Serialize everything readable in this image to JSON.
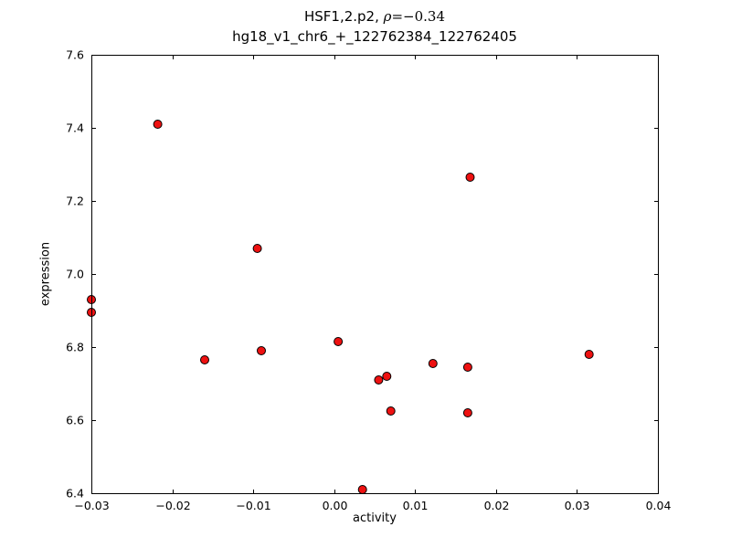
{
  "chart_data": {
    "type": "scatter",
    "title": {
      "prefix": "HSF1,2.p2, ",
      "rho": "ρ",
      "rho_value": "=−0.34",
      "line2": "hg18_v1_chr6_+_122762384_122762405"
    },
    "xlabel": "activity",
    "ylabel": "expression",
    "xlim": [
      -0.03,
      0.04
    ],
    "ylim": [
      6.4,
      7.6
    ],
    "grid": false,
    "legend": "none",
    "xtick_values": [
      -0.03,
      -0.02,
      -0.01,
      0.0,
      0.01,
      0.02,
      0.03,
      0.04
    ],
    "xtick_labels": [
      "−0.03",
      "−0.02",
      "−0.01",
      "0.00",
      "0.01",
      "0.02",
      "0.03",
      "0.04"
    ],
    "ytick_values": [
      6.4,
      6.6,
      6.8,
      7.0,
      7.2,
      7.4,
      7.6
    ],
    "ytick_labels": [
      "6.4",
      "6.6",
      "6.8",
      "7.0",
      "7.2",
      "7.4",
      "7.6"
    ],
    "marker": {
      "color": "#ee1111",
      "edge": "#000000",
      "radius": 4.5
    },
    "points": [
      {
        "x": -0.03,
        "y": 6.93
      },
      {
        "x": -0.03,
        "y": 6.895
      },
      {
        "x": -0.0218,
        "y": 7.41
      },
      {
        "x": -0.016,
        "y": 6.765
      },
      {
        "x": -0.0095,
        "y": 7.07
      },
      {
        "x": -0.009,
        "y": 6.79
      },
      {
        "x": 0.0005,
        "y": 6.815
      },
      {
        "x": 0.0035,
        "y": 6.41
      },
      {
        "x": 0.0055,
        "y": 6.71
      },
      {
        "x": 0.0065,
        "y": 6.72
      },
      {
        "x": 0.007,
        "y": 6.625
      },
      {
        "x": 0.0122,
        "y": 6.755
      },
      {
        "x": 0.0165,
        "y": 6.745
      },
      {
        "x": 0.0168,
        "y": 7.265
      },
      {
        "x": 0.0165,
        "y": 6.62
      },
      {
        "x": 0.0315,
        "y": 6.78
      }
    ]
  }
}
